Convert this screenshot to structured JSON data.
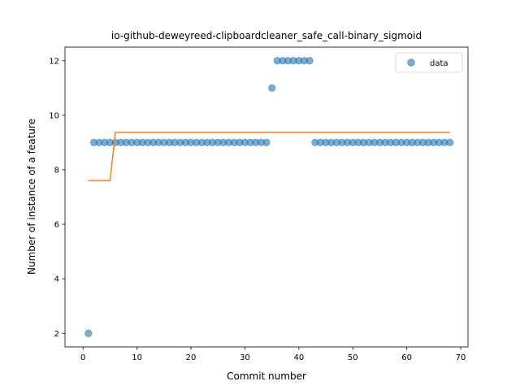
{
  "chart_data": {
    "type": "scatter",
    "title": "io-github-deweyreed-clipboardcleaner_safe_call-binary_sigmoid",
    "xlabel": "Commit number",
    "ylabel": "Number of instance of a feature",
    "xlim": [
      -3.35,
      71.35
    ],
    "ylim": [
      1.5,
      12.5
    ],
    "xticks": [
      0,
      10,
      20,
      30,
      40,
      50,
      60,
      70
    ],
    "yticks": [
      2,
      4,
      6,
      8,
      10,
      12
    ],
    "grid": false,
    "legend_position": "top-right",
    "series": [
      {
        "name": "data",
        "kind": "scatter",
        "color": "#1f77b4",
        "x": [
          1,
          2,
          3,
          4,
          5,
          6,
          7,
          8,
          9,
          10,
          11,
          12,
          13,
          14,
          15,
          16,
          17,
          18,
          19,
          20,
          21,
          22,
          23,
          24,
          25,
          26,
          27,
          28,
          29,
          30,
          31,
          32,
          33,
          34,
          35,
          36,
          37,
          38,
          39,
          40,
          41,
          42,
          43,
          44,
          45,
          46,
          47,
          48,
          49,
          50,
          51,
          52,
          53,
          54,
          55,
          56,
          57,
          58,
          59,
          60,
          61,
          62,
          63,
          64,
          65,
          66,
          67,
          68
        ],
        "y": [
          2,
          9,
          9,
          9,
          9,
          9,
          9,
          9,
          9,
          9,
          9,
          9,
          9,
          9,
          9,
          9,
          9,
          9,
          9,
          9,
          9,
          9,
          9,
          9,
          9,
          9,
          9,
          9,
          9,
          9,
          9,
          9,
          9,
          9,
          11,
          12,
          12,
          12,
          12,
          12,
          12,
          12,
          9,
          9,
          9,
          9,
          9,
          9,
          9,
          9,
          9,
          9,
          9,
          9,
          9,
          9,
          9,
          9,
          9,
          9,
          9,
          9,
          9,
          9,
          9,
          9,
          9,
          9
        ]
      },
      {
        "kind": "line",
        "color": "#ff7f0e",
        "x": [
          1,
          2,
          3,
          4,
          5,
          6,
          7,
          8,
          9,
          10,
          11,
          12,
          13,
          14,
          15,
          16,
          17,
          18,
          19,
          20,
          21,
          22,
          23,
          24,
          25,
          26,
          27,
          28,
          29,
          30,
          31,
          32,
          33,
          34,
          35,
          36,
          37,
          38,
          39,
          40,
          41,
          42,
          43,
          44,
          45,
          46,
          47,
          48,
          49,
          50,
          51,
          52,
          53,
          54,
          55,
          56,
          57,
          58,
          59,
          60,
          61,
          62,
          63,
          64,
          65,
          66,
          67,
          68
        ],
        "y": [
          7.6,
          7.6,
          7.6,
          7.6,
          7.6,
          9.37,
          9.37,
          9.37,
          9.37,
          9.37,
          9.37,
          9.37,
          9.37,
          9.37,
          9.37,
          9.37,
          9.37,
          9.37,
          9.37,
          9.37,
          9.37,
          9.37,
          9.37,
          9.37,
          9.37,
          9.37,
          9.37,
          9.37,
          9.37,
          9.37,
          9.37,
          9.37,
          9.37,
          9.37,
          9.37,
          9.37,
          9.37,
          9.37,
          9.37,
          9.37,
          9.37,
          9.37,
          9.37,
          9.37,
          9.37,
          9.37,
          9.37,
          9.37,
          9.37,
          9.37,
          9.37,
          9.37,
          9.37,
          9.37,
          9.37,
          9.37,
          9.37,
          9.37,
          9.37,
          9.37,
          9.37,
          9.37,
          9.37,
          9.37,
          9.37,
          9.37,
          9.37,
          9.37
        ]
      }
    ]
  }
}
